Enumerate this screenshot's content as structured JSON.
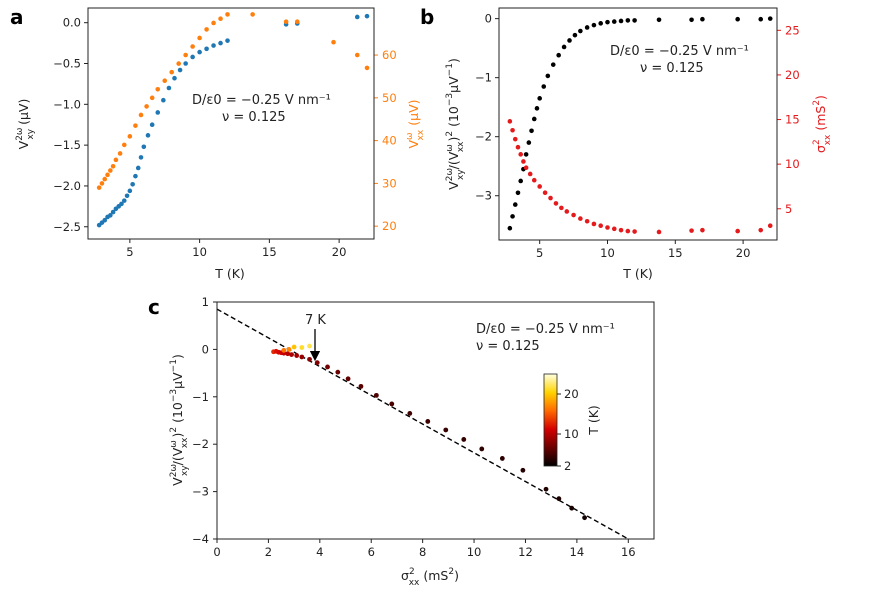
{
  "chart_data": [
    {
      "panel": "a",
      "type": "scatter",
      "xlabel": "T (K)",
      "ylabel": "V_xy^2ω (μV)",
      "ylabel_right": "V_xx^ω (μV)",
      "xlim": [
        2,
        22.5
      ],
      "ylim_left": [
        -2.65,
        0.18
      ],
      "ylim_right": [
        17,
        71
      ],
      "x_ticks": [
        5,
        10,
        15,
        20
      ],
      "y_ticks_left": [
        "0.0",
        "-0.5",
        "-1.0",
        "-1.5",
        "-2.0",
        "-2.5"
      ],
      "y_ticks_right": [
        "20",
        "30",
        "40",
        "50",
        "60"
      ],
      "annotation": [
        "D/ε0 = −0.25 V nm⁻¹",
        "ν = 0.125"
      ],
      "series": [
        {
          "name": "V_xy^2ω",
          "axis": "left",
          "color": "#1f77b4",
          "x": [
            2.8,
            3.0,
            3.2,
            3.4,
            3.6,
            3.8,
            4.0,
            4.2,
            4.4,
            4.6,
            4.8,
            5.0,
            5.2,
            5.4,
            5.6,
            5.8,
            6.0,
            6.3,
            6.6,
            7.0,
            7.4,
            7.8,
            8.2,
            8.6,
            9.0,
            9.5,
            10.0,
            10.5,
            11.0,
            11.5,
            12.0,
            16.2,
            17.0,
            21.3,
            22.0
          ],
          "y": [
            -2.48,
            -2.45,
            -2.42,
            -2.38,
            -2.36,
            -2.32,
            -2.28,
            -2.25,
            -2.22,
            -2.18,
            -2.12,
            -2.06,
            -1.98,
            -1.88,
            -1.78,
            -1.65,
            -1.52,
            -1.38,
            -1.25,
            -1.1,
            -0.95,
            -0.8,
            -0.68,
            -0.58,
            -0.5,
            -0.42,
            -0.36,
            -0.32,
            -0.28,
            -0.25,
            -0.22,
            -0.02,
            -0.01,
            0.07,
            0.08
          ]
        },
        {
          "name": "V_xx^ω",
          "axis": "right",
          "color": "#ff7f0e",
          "x": [
            2.8,
            3.0,
            3.2,
            3.4,
            3.6,
            3.8,
            4.0,
            4.3,
            4.6,
            5.0,
            5.4,
            5.8,
            6.2,
            6.6,
            7.0,
            7.5,
            8.0,
            8.5,
            9.0,
            9.5,
            10.0,
            10.5,
            11.0,
            11.5,
            12.0,
            13.8,
            16.2,
            17.0,
            19.6,
            21.3,
            22.0
          ],
          "y": [
            29,
            30,
            31,
            32,
            33,
            34,
            35.5,
            37,
            39,
            41,
            43.5,
            46,
            48,
            50,
            52,
            54,
            56,
            58,
            60,
            62,
            64,
            66,
            67.5,
            68.5,
            69.5,
            69.5,
            67.8,
            67.8,
            63,
            60,
            57
          ]
        }
      ]
    },
    {
      "panel": "b",
      "type": "scatter",
      "xlabel": "T (K)",
      "ylabel": "V_xy^2ω/(V_xx^ω)² (10⁻³μV⁻¹)",
      "ylabel_right": "σ²_xx (mS²)",
      "xlim": [
        2,
        22.5
      ],
      "ylim_left": [
        -3.75,
        0.18
      ],
      "ylim_right": [
        1.5,
        27.5
      ],
      "x_ticks": [
        5,
        10,
        15,
        20
      ],
      "y_ticks_left": [
        "0",
        "-1",
        "-2",
        "-3"
      ],
      "y_ticks_right": [
        "5",
        "10",
        "15",
        "20",
        "25"
      ],
      "annotation": [
        "D/ε0 = −0.25 V nm⁻¹",
        "ν = 0.125"
      ],
      "series": [
        {
          "name": "V_xy^2ω/(V_xx^ω)²",
          "axis": "left",
          "color": "#000000",
          "x": [
            2.8,
            3.0,
            3.2,
            3.4,
            3.6,
            3.8,
            4.0,
            4.2,
            4.4,
            4.6,
            4.8,
            5.0,
            5.3,
            5.6,
            6.0,
            6.4,
            6.8,
            7.2,
            7.6,
            8.0,
            8.5,
            9.0,
            9.5,
            10.0,
            10.5,
            11.0,
            11.5,
            12.0,
            13.8,
            16.2,
            17.0,
            19.6,
            21.3,
            22.0
          ],
          "y": [
            -3.55,
            -3.35,
            -3.15,
            -2.95,
            -2.75,
            -2.55,
            -2.3,
            -2.1,
            -1.9,
            -1.7,
            -1.52,
            -1.35,
            -1.15,
            -0.97,
            -0.78,
            -0.62,
            -0.48,
            -0.37,
            -0.28,
            -0.21,
            -0.15,
            -0.11,
            -0.08,
            -0.06,
            -0.05,
            -0.04,
            -0.03,
            -0.03,
            -0.02,
            -0.02,
            -0.01,
            -0.01,
            -0.01,
            0.0
          ]
        },
        {
          "name": "σ²_xx",
          "axis": "right",
          "color": "#e41a1c",
          "x": [
            2.8,
            3.0,
            3.2,
            3.4,
            3.6,
            3.8,
            4.0,
            4.3,
            4.6,
            5.0,
            5.4,
            5.8,
            6.2,
            6.6,
            7.0,
            7.5,
            8.0,
            8.5,
            9.0,
            9.5,
            10.0,
            10.5,
            11.0,
            11.5,
            12.0,
            13.8,
            16.2,
            17.0,
            19.6,
            21.3,
            22.0
          ],
          "y": [
            14.8,
            13.8,
            12.8,
            11.9,
            11.1,
            10.3,
            9.6,
            8.9,
            8.2,
            7.5,
            6.8,
            6.2,
            5.6,
            5.1,
            4.7,
            4.3,
            3.9,
            3.6,
            3.3,
            3.1,
            2.9,
            2.75,
            2.6,
            2.5,
            2.45,
            2.4,
            2.55,
            2.6,
            2.5,
            2.6,
            3.1
          ]
        }
      ]
    },
    {
      "panel": "c",
      "type": "scatter",
      "xlabel": "σ²_xx (mS²)",
      "ylabel": "V_xy^2ω/(V_xx^ω)² (10⁻³μV⁻¹)",
      "xlim": [
        0,
        17
      ],
      "ylim": [
        -4,
        1
      ],
      "x_ticks": [
        "0",
        "2",
        "4",
        "6",
        "8",
        "10",
        "12",
        "14",
        "16"
      ],
      "y_ticks": [
        "1",
        "0",
        "-1",
        "-2",
        "-3",
        "-4"
      ],
      "annotation": [
        "D/ε0 = −0.25 V nm⁻¹",
        "ν = 0.125"
      ],
      "arrow_label": "7 K",
      "fit_line": {
        "x": [
          0,
          16
        ],
        "y": [
          0.85,
          -4.0
        ],
        "style": "dashed"
      },
      "colorbar": {
        "label": "T (K)",
        "ticks": [
          "20",
          "10",
          "2"
        ],
        "range": [
          2,
          25
        ],
        "colors": [
          "#000000",
          "#6b0000",
          "#d40000",
          "#ff6a00",
          "#ffd400",
          "#ffffe0"
        ]
      },
      "points": [
        {
          "x": 2.2,
          "y": -0.05,
          "T": 13.0
        },
        {
          "x": 2.3,
          "y": -0.04,
          "T": 12.0
        },
        {
          "x": 2.4,
          "y": -0.06,
          "T": 11.5
        },
        {
          "x": 2.5,
          "y": -0.07,
          "T": 11.0
        },
        {
          "x": 2.6,
          "y": -0.08,
          "T": 10.5
        },
        {
          "x": 2.75,
          "y": -0.09,
          "T": 10.0
        },
        {
          "x": 2.9,
          "y": -0.11,
          "T": 9.5
        },
        {
          "x": 3.1,
          "y": -0.13,
          "T": 9.0
        },
        {
          "x": 3.3,
          "y": -0.16,
          "T": 8.5
        },
        {
          "x": 3.6,
          "y": -0.21,
          "T": 8.0
        },
        {
          "x": 3.9,
          "y": -0.28,
          "T": 7.5
        },
        {
          "x": 4.3,
          "y": -0.37,
          "T": 7.0
        },
        {
          "x": 4.7,
          "y": -0.48,
          "T": 6.6
        },
        {
          "x": 5.1,
          "y": -0.62,
          "T": 6.2
        },
        {
          "x": 5.6,
          "y": -0.78,
          "T": 5.8
        },
        {
          "x": 6.2,
          "y": -0.97,
          "T": 5.4
        },
        {
          "x": 6.8,
          "y": -1.15,
          "T": 5.1
        },
        {
          "x": 7.5,
          "y": -1.35,
          "T": 4.8
        },
        {
          "x": 8.2,
          "y": -1.52,
          "T": 4.6
        },
        {
          "x": 8.9,
          "y": -1.7,
          "T": 4.4
        },
        {
          "x": 9.6,
          "y": -1.9,
          "T": 4.2
        },
        {
          "x": 10.3,
          "y": -2.1,
          "T": 4.0
        },
        {
          "x": 11.1,
          "y": -2.3,
          "T": 3.8
        },
        {
          "x": 11.9,
          "y": -2.55,
          "T": 3.6
        },
        {
          "x": 12.8,
          "y": -2.95,
          "T": 3.4
        },
        {
          "x": 13.3,
          "y": -3.15,
          "T": 3.2
        },
        {
          "x": 13.8,
          "y": -3.35,
          "T": 3.0
        },
        {
          "x": 14.3,
          "y": -3.55,
          "T": 2.8
        },
        {
          "x": 2.6,
          "y": -0.02,
          "T": 16.2
        },
        {
          "x": 2.8,
          "y": 0.0,
          "T": 17.0
        },
        {
          "x": 3.0,
          "y": 0.05,
          "T": 19.6
        },
        {
          "x": 3.3,
          "y": 0.04,
          "T": 21.3
        },
        {
          "x": 3.6,
          "y": 0.07,
          "T": 22.0
        }
      ]
    }
  ]
}
